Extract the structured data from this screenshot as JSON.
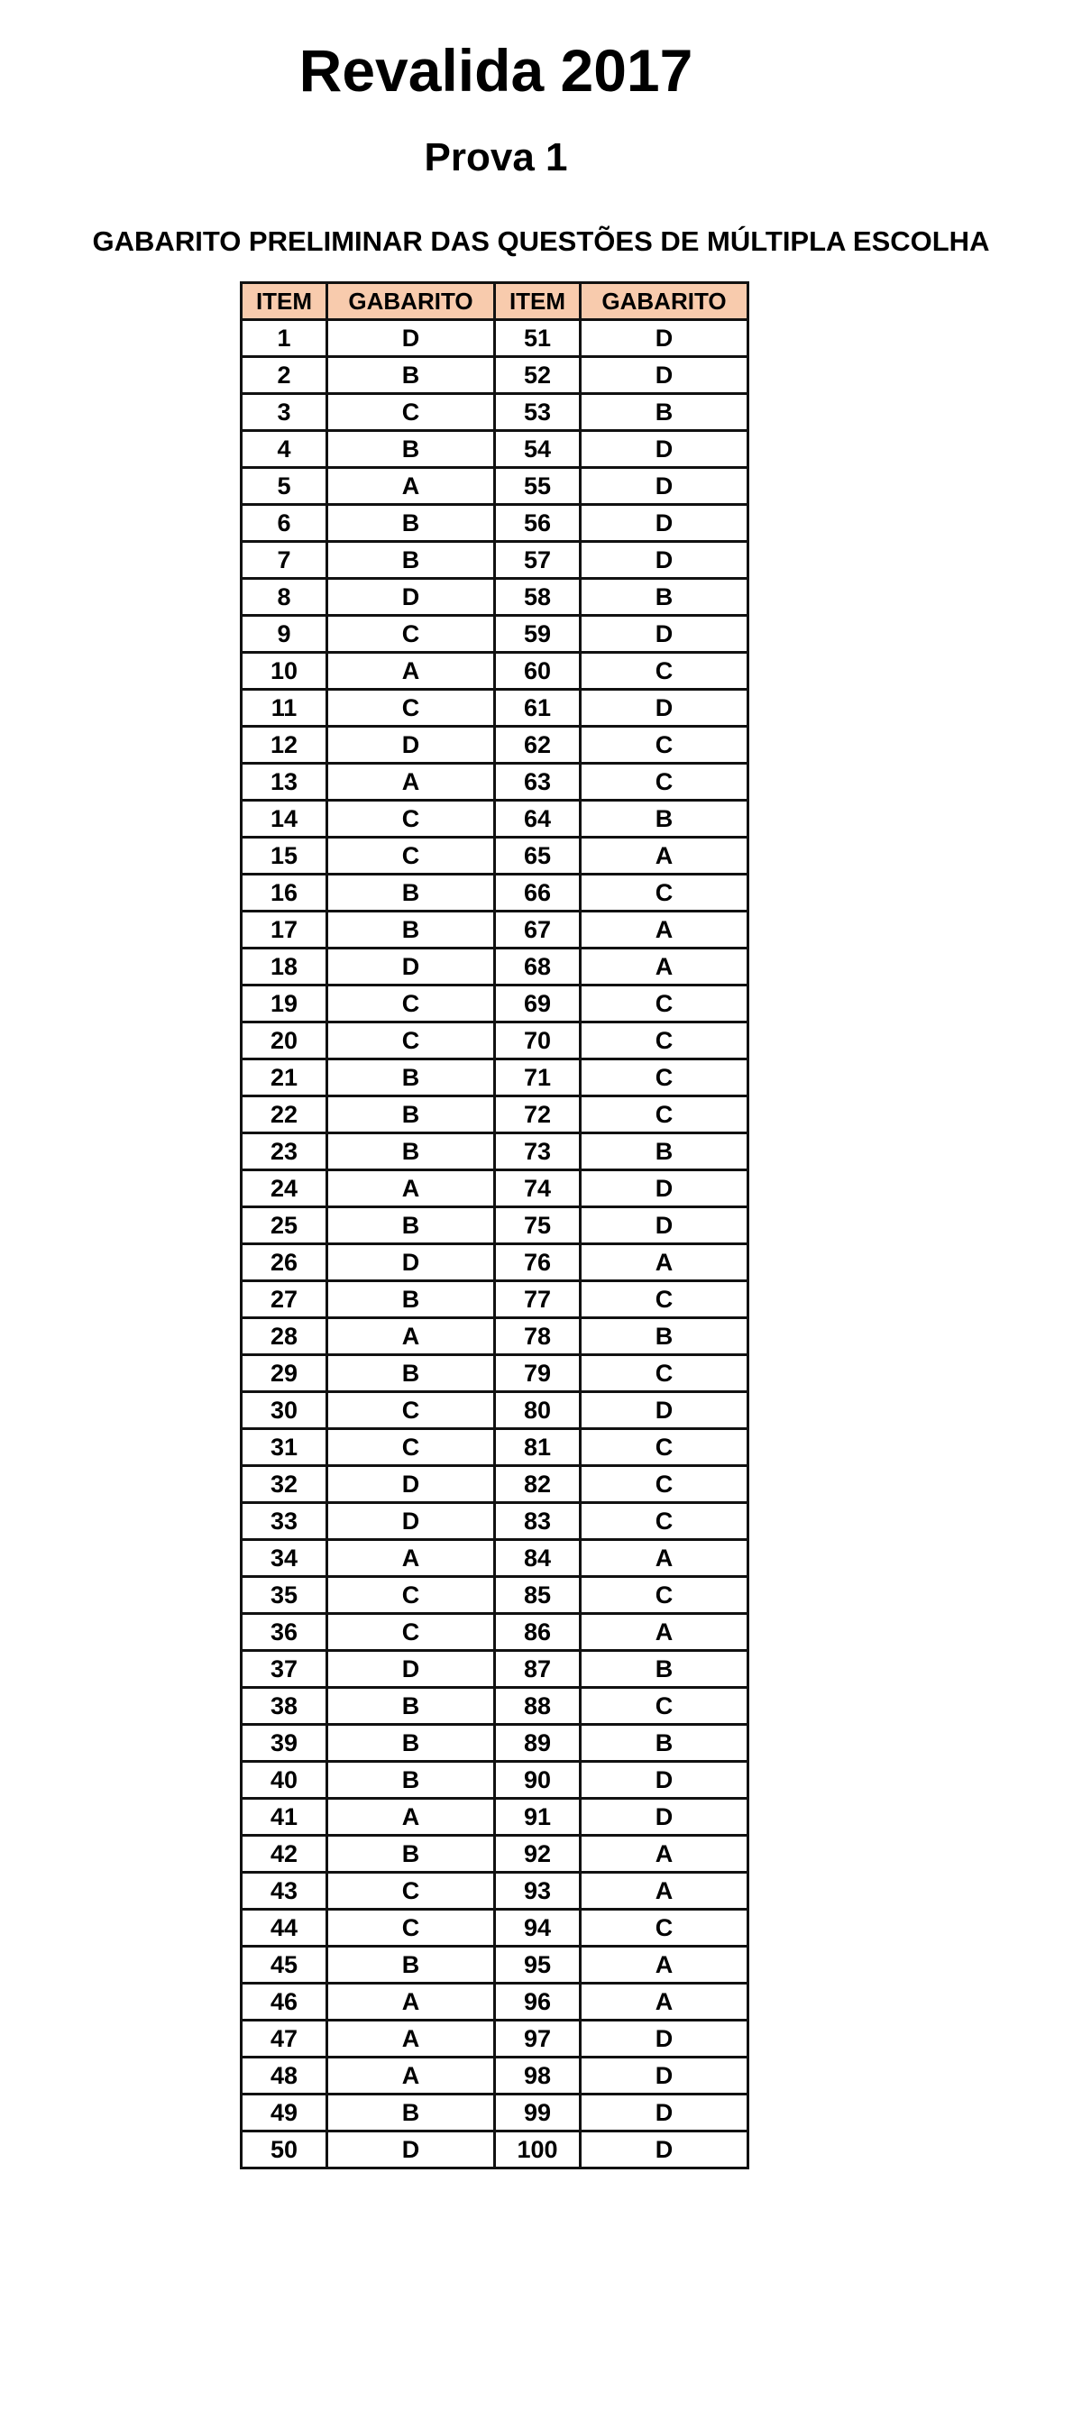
{
  "title": "Revalida 2017",
  "subtitle": "Prova 1",
  "heading": "GABARITO PRELIMINAR DAS QUESTÕES DE MÚLTIPLA ESCOLHA",
  "colors": {
    "header_fill": "#f8cbad",
    "border": "#111111"
  },
  "table": {
    "headers": [
      "ITEM",
      "GABARITO",
      "ITEM",
      "GABARITO"
    ],
    "answers": [
      "D",
      "B",
      "C",
      "B",
      "A",
      "B",
      "B",
      "D",
      "C",
      "A",
      "C",
      "D",
      "A",
      "C",
      "C",
      "B",
      "B",
      "D",
      "C",
      "C",
      "B",
      "B",
      "B",
      "A",
      "B",
      "D",
      "B",
      "A",
      "B",
      "C",
      "C",
      "D",
      "D",
      "A",
      "C",
      "C",
      "D",
      "B",
      "B",
      "B",
      "A",
      "B",
      "C",
      "C",
      "B",
      "A",
      "A",
      "A",
      "B",
      "D",
      "D",
      "D",
      "B",
      "D",
      "D",
      "D",
      "D",
      "B",
      "D",
      "C",
      "D",
      "C",
      "C",
      "B",
      "A",
      "C",
      "A",
      "A",
      "C",
      "C",
      "C",
      "C",
      "B",
      "D",
      "D",
      "A",
      "C",
      "B",
      "C",
      "D",
      "C",
      "C",
      "C",
      "A",
      "C",
      "A",
      "B",
      "C",
      "B",
      "D",
      "D",
      "A",
      "A",
      "C",
      "A",
      "A",
      "D",
      "D",
      "D",
      "D"
    ],
    "rows": []
  }
}
